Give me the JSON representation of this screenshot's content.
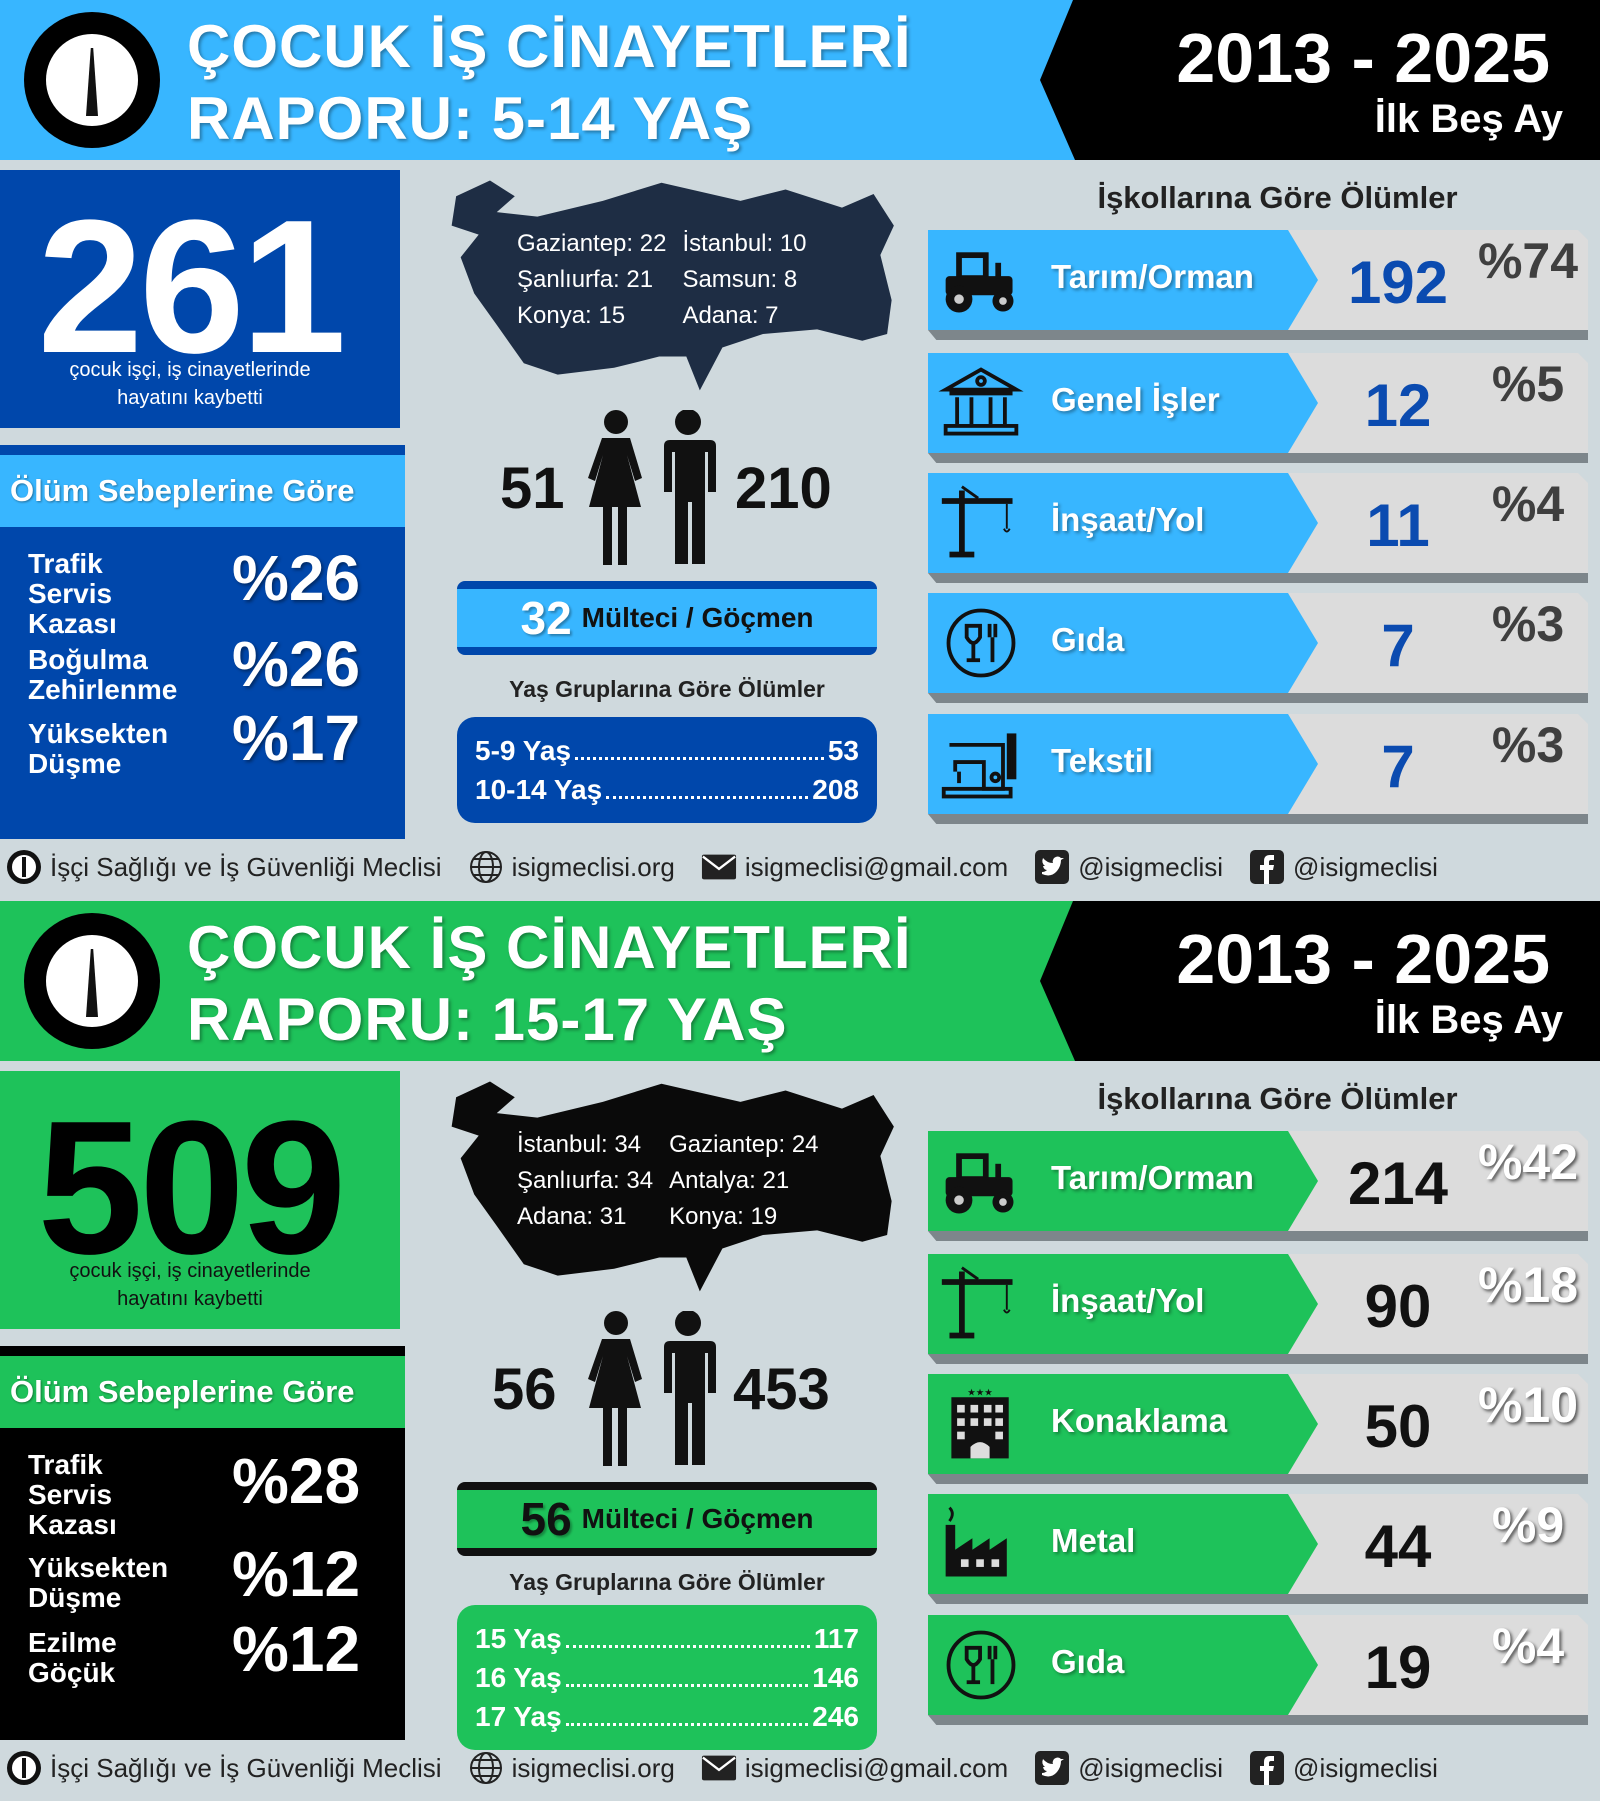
{
  "reports": [
    {
      "theme": {
        "accent": "#38b6ff",
        "panel": "#0047ab",
        "total_color": "#ffffff",
        "caption_color": "#ffffff",
        "cause_header_border": "#0047ab",
        "count_color": "#0b4bb0",
        "pct_color": "#3f3f3f",
        "age_box": "#0047ab",
        "ref_border": "#0047ab",
        "map_color": "#1e2d44"
      },
      "title_line1": "ÇOCUK İŞ CİNAYETLERİ",
      "title_line2": "RAPORU: 5-14 YAŞ",
      "years": "2013 - 2025",
      "period": "İlk Beş Ay",
      "total": "261",
      "total_caption": "çocuk işçi, iş cinayetlerinde\nhayatını kaybetti",
      "causes_title": "Ölüm Sebeplerine Göre",
      "causes": [
        {
          "label": "Trafik\nServis\nKazası",
          "pct": "%26"
        },
        {
          "label": "Boğulma\nZehirlenme",
          "pct": "%26"
        },
        {
          "label": "Yüksekten\nDüşme",
          "pct": "%17"
        }
      ],
      "cities": [
        "Gaziantep: 22",
        "İstanbul: 10",
        "Şanlıurfa: 21",
        "Samsun: 8",
        "Konya: 15",
        "Adana: 7"
      ],
      "female": "51",
      "male": "210",
      "refugee_count": "32",
      "refugee_label": "Mülteci / Göçmen",
      "age_title": "Yaş Gruplarına Göre Ölümler",
      "age_groups": [
        {
          "label": "5-9 Yaş",
          "value": "53"
        },
        {
          "label": "10-14 Yaş",
          "value": "208"
        }
      ],
      "sectors_title": "İşkollarına Göre Ölümler",
      "sectors": [
        {
          "name": "Tarım/Orman",
          "icon": "tractor-icon",
          "count": "192",
          "pct": "%74"
        },
        {
          "name": "Genel İşler",
          "icon": "bank-building-icon",
          "count": "12",
          "pct": "%5"
        },
        {
          "name": "İnşaat/Yol",
          "icon": "crane-icon",
          "count": "11",
          "pct": "%4"
        },
        {
          "name": "Gıda",
          "icon": "food-icon",
          "count": "7",
          "pct": "%3"
        },
        {
          "name": "Tekstil",
          "icon": "sewing-machine-icon",
          "count": "7",
          "pct": "%3"
        }
      ]
    },
    {
      "theme": {
        "accent": "#1ec25a",
        "panel": "#000000",
        "total_color": "#000000",
        "caption_color": "#111111",
        "cause_header_border": "#000000",
        "count_color": "#111111",
        "pct_color": "#ffffff",
        "age_box": "#1ec25a",
        "ref_border": "#111111",
        "map_color": "#0a0a0a"
      },
      "title_line1": "ÇOCUK İŞ CİNAYETLERİ",
      "title_line2": "RAPORU: 15-17 YAŞ",
      "years": "2013 - 2025",
      "period": "İlk Beş Ay",
      "total": "509",
      "total_caption": "çocuk işçi, iş cinayetlerinde\nhayatını kaybetti",
      "causes_title": "Ölüm Sebeplerine Göre",
      "causes": [
        {
          "label": "Trafik\nServis\nKazası",
          "pct": "%28"
        },
        {
          "label": "Yüksekten\nDüşme",
          "pct": "%12"
        },
        {
          "label": "Ezilme\nGöçük",
          "pct": "%12"
        }
      ],
      "cities": [
        "İstanbul: 34",
        "Gaziantep: 24",
        "Şanlıurfa: 34",
        "Antalya: 21",
        "Adana: 31",
        "Konya: 19"
      ],
      "female": "56",
      "male": "453",
      "refugee_count": "56",
      "refugee_label": "Mülteci / Göçmen",
      "age_title": "Yaş Gruplarına Göre Ölümler",
      "age_groups": [
        {
          "label": "15 Yaş",
          "value": "117"
        },
        {
          "label": "16 Yaş",
          "value": "146"
        },
        {
          "label": "17 Yaş",
          "value": "246"
        }
      ],
      "sectors_title": "İşkollarına Göre Ölümler",
      "sectors": [
        {
          "name": "Tarım/Orman",
          "icon": "tractor-icon",
          "count": "214",
          "pct": "%42"
        },
        {
          "name": "İnşaat/Yol",
          "icon": "crane-icon",
          "count": "90",
          "pct": "%18"
        },
        {
          "name": "Konaklama",
          "icon": "hotel-icon",
          "count": "50",
          "pct": "%10"
        },
        {
          "name": "Metal",
          "icon": "factory-icon",
          "count": "44",
          "pct": "%9"
        },
        {
          "name": "Gıda",
          "icon": "food-icon",
          "count": "19",
          "pct": "%4"
        }
      ]
    }
  ],
  "footer": {
    "org": "İşçi Sağlığı ve İş Güvenliği Meclisi",
    "website": "isigmeclisi.org",
    "email": "isigmeclisi@gmail.com",
    "twitter": "@isigmeclisi",
    "facebook": "@isigmeclisi"
  }
}
